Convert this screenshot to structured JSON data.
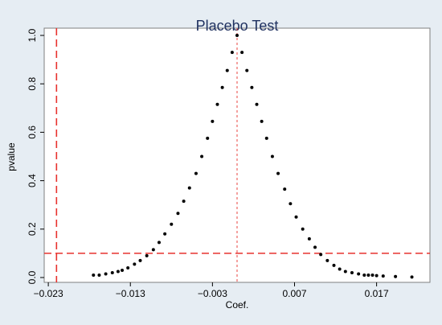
{
  "chart_data": {
    "type": "scatter",
    "title": "Placebo Test",
    "xlabel": "Coef.",
    "ylabel": "pvalue",
    "xlim": [
      -0.0235,
      0.0235
    ],
    "ylim": [
      -0.02,
      1.03
    ],
    "x_ticks": [
      -0.023,
      -0.013,
      -0.003,
      0.007,
      0.017
    ],
    "x_tick_labels": [
      "−0.023",
      "−0.013",
      "−0.003",
      "0.007",
      "0.017"
    ],
    "y_ticks": [
      0,
      0.2,
      0.4,
      0.6,
      0.8,
      1.0
    ],
    "y_tick_labels": [
      "0.0",
      "0.2",
      "0.4",
      "0.6",
      "0.8",
      "1.0"
    ],
    "grid": false,
    "legend": "none",
    "reference_lines": {
      "vertical_true_estimate": -0.022,
      "vertical_center": 0,
      "horizontal_pvalue": 0.1
    },
    "series": [
      {
        "x": [
          -0.0175,
          -0.0168,
          -0.016,
          -0.0152,
          -0.0145,
          -0.014,
          -0.0133,
          -0.0125,
          -0.0118,
          -0.011,
          -0.0102,
          -0.0095,
          -0.0088,
          -0.008,
          -0.0072,
          -0.0065,
          -0.0058,
          -0.005,
          -0.0043,
          -0.0036,
          -0.003,
          -0.0024,
          -0.0018,
          -0.0012,
          -0.0006,
          0,
          0.0006,
          0.0012,
          0.0018,
          0.0024,
          0.003,
          0.0036,
          0.0043,
          0.005,
          0.0058,
          0.0065,
          0.0072,
          0.008,
          0.0088,
          0.0095,
          0.0102,
          0.011,
          0.0118,
          0.0125,
          0.0132,
          0.014,
          0.0148,
          0.0155,
          0.016,
          0.0165,
          0.017,
          0.0178,
          0.0193,
          0.0213
        ],
        "y": [
          0.01,
          0.01,
          0.015,
          0.02,
          0.025,
          0.03,
          0.04,
          0.055,
          0.07,
          0.09,
          0.115,
          0.145,
          0.18,
          0.22,
          0.265,
          0.315,
          0.37,
          0.43,
          0.5,
          0.575,
          0.645,
          0.715,
          0.785,
          0.855,
          0.93,
          1.0,
          0.93,
          0.855,
          0.785,
          0.715,
          0.645,
          0.575,
          0.5,
          0.43,
          0.365,
          0.305,
          0.25,
          0.2,
          0.16,
          0.125,
          0.095,
          0.07,
          0.05,
          0.035,
          0.025,
          0.02,
          0.015,
          0.01,
          0.01,
          0.01,
          0.008,
          0.006,
          0.004,
          0.002
        ]
      }
    ]
  },
  "colors": {
    "outer_background": "#e6edf3",
    "plot_background": "#ffffff",
    "reference_line": "#e8322e",
    "points": "#000000",
    "title": "#1f3160"
  }
}
